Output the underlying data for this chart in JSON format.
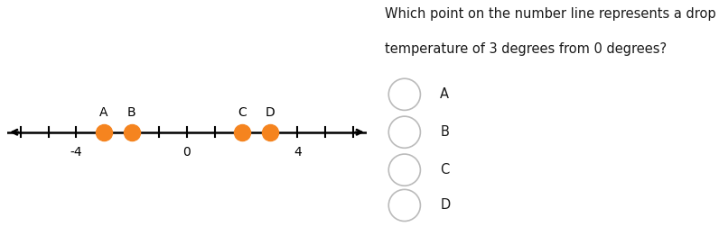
{
  "number_line_xlim": [
    -6.5,
    6.5
  ],
  "tick_positions": [
    -6,
    -5,
    -4,
    -3,
    -2,
    -1,
    0,
    1,
    2,
    3,
    4,
    5,
    6
  ],
  "labeled_ticks": {
    "-4": -4,
    "0": 0,
    "4": 4
  },
  "points": {
    "A": -3,
    "B": -2,
    "C": 2,
    "D": 3
  },
  "point_color": "#F5841F",
  "line_color": "#000000",
  "question_text_line1": "Which point on the number line represents a drop in",
  "question_text_line2": "temperature of 3 degrees from 0 degrees?",
  "choices": [
    "A",
    "B",
    "C",
    "D"
  ],
  "background_color": "#ffffff",
  "font_size_question": 10.5,
  "font_size_choices": 10.5,
  "font_size_labels": 10,
  "font_size_point_labels": 10
}
